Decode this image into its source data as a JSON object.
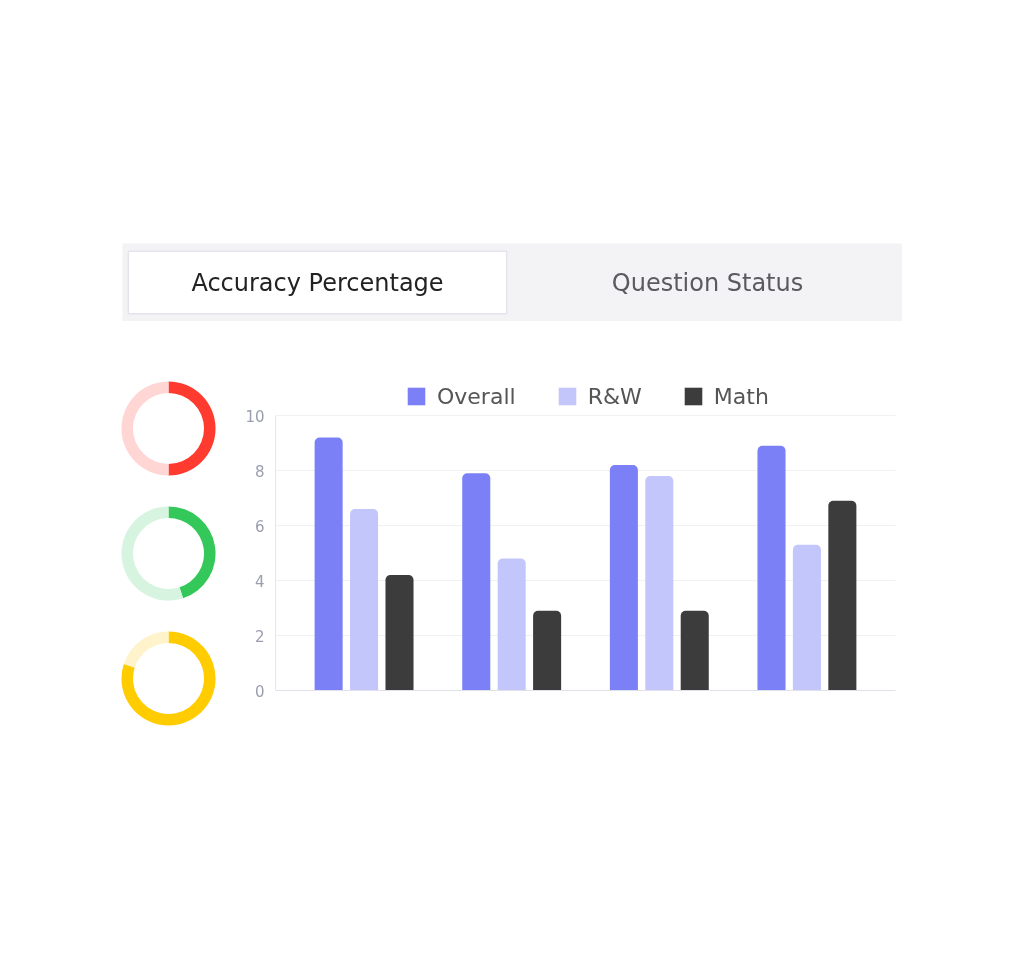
{
  "chart_data": [
    {
      "type": "other",
      "annotations": [
        "Accuracy Percentage",
        "Question Status"
      ]
    },
    {
      "type": "donut",
      "categories": [
        null,
        null
      ],
      "values": [
        50,
        50
      ],
      "colors": [
        "#ff3b30",
        "#ffd6d4"
      ]
    },
    {
      "type": "donut",
      "categories": [
        null,
        null
      ],
      "values": [
        45,
        55
      ],
      "colors": [
        "#34c759",
        "#d6f4df"
      ]
    },
    {
      "type": "donut",
      "categories": [
        null,
        null
      ],
      "values": [
        80,
        20
      ],
      "colors": [
        "#ffcc00",
        "#fff3cc"
      ]
    },
    {
      "type": "bar",
      "categories": [
        null,
        null,
        null,
        null
      ],
      "series": [
        {
          "name": "Overall",
          "color": "#7c80f6",
          "values": [
            9.2,
            7.9,
            8.2,
            8.9
          ]
        },
        {
          "name": "R&W",
          "color": "#c3c6fb",
          "values": [
            6.6,
            4.8,
            7.8,
            5.3
          ]
        },
        {
          "name": "Math",
          "color": "#3c3c3c",
          "values": [
            4.2,
            2.9,
            2.9,
            6.9
          ]
        }
      ],
      "ylim": [
        0,
        10
      ],
      "yticks": [
        0,
        2,
        4,
        6,
        8,
        10
      ],
      "grid": "y",
      "legend": "top"
    }
  ]
}
